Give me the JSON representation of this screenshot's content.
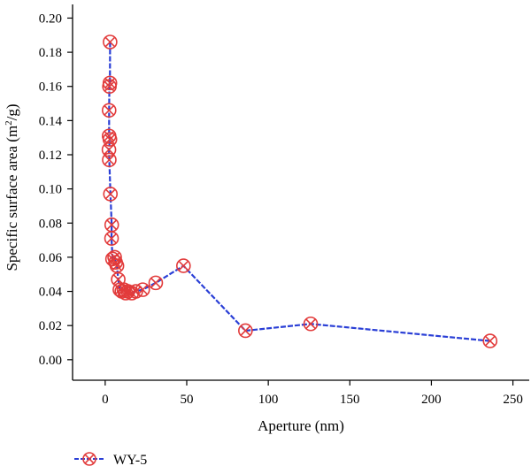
{
  "chart_data": {
    "type": "line",
    "xlabel": "Aperture (nm)",
    "ylabel": "Specific surface area (m",
    "ylabel_sup": "2",
    "ylabel_end": "/g)",
    "xlim": [
      -20,
      260
    ],
    "ylim": [
      -0.012,
      0.208
    ],
    "xticks": [
      0,
      50,
      100,
      150,
      200,
      250
    ],
    "yticks": [
      0.0,
      0.02,
      0.04,
      0.06,
      0.08,
      0.1,
      0.12,
      0.14,
      0.16,
      0.18,
      0.2
    ],
    "xtick_labels": [
      "0",
      "50",
      "100",
      "150",
      "200",
      "250"
    ],
    "ytick_labels": [
      "0.00",
      "0.02",
      "0.04",
      "0.06",
      "0.08",
      "0.10",
      "0.12",
      "0.14",
      "0.16",
      "0.18",
      "0.20"
    ],
    "grid": false,
    "legend_position": "bottom-left",
    "series": [
      {
        "name": "WY-5",
        "line_color": "#2a3fd6",
        "marker_color": "#e23b3b",
        "marker": "circle-x",
        "points": [
          {
            "x": 3.0,
            "y": 0.186
          },
          {
            "x": 2.9,
            "y": 0.162
          },
          {
            "x": 2.6,
            "y": 0.16
          },
          {
            "x": 2.4,
            "y": 0.146
          },
          {
            "x": 2.4,
            "y": 0.131
          },
          {
            "x": 2.9,
            "y": 0.129
          },
          {
            "x": 2.3,
            "y": 0.123
          },
          {
            "x": 2.5,
            "y": 0.117
          },
          {
            "x": 3.2,
            "y": 0.097
          },
          {
            "x": 4.0,
            "y": 0.079
          },
          {
            "x": 3.9,
            "y": 0.071
          },
          {
            "x": 4.5,
            "y": 0.059
          },
          {
            "x": 5.8,
            "y": 0.06
          },
          {
            "x": 6.4,
            "y": 0.057
          },
          {
            "x": 7.2,
            "y": 0.055
          },
          {
            "x": 8.0,
            "y": 0.047
          },
          {
            "x": 9.0,
            "y": 0.041
          },
          {
            "x": 10.2,
            "y": 0.04
          },
          {
            "x": 11.5,
            "y": 0.041
          },
          {
            "x": 12.6,
            "y": 0.039
          },
          {
            "x": 14.0,
            "y": 0.04
          },
          {
            "x": 16.3,
            "y": 0.039
          },
          {
            "x": 18.8,
            "y": 0.04
          },
          {
            "x": 23.0,
            "y": 0.041
          },
          {
            "x": 31.0,
            "y": 0.045
          },
          {
            "x": 48.0,
            "y": 0.055
          },
          {
            "x": 86.0,
            "y": 0.017
          },
          {
            "x": 126.0,
            "y": 0.021
          },
          {
            "x": 236.0,
            "y": 0.011
          }
        ]
      }
    ]
  }
}
